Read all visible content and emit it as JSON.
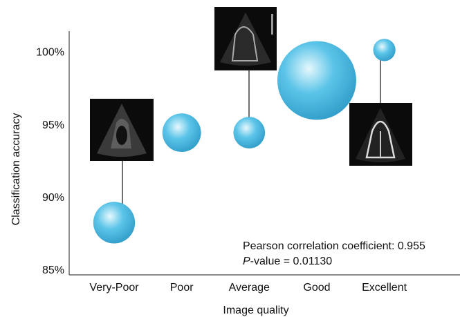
{
  "chart_data": {
    "type": "bubble",
    "xlabel": "Image quality",
    "ylabel": "Classification accuracy",
    "categories": [
      "Very-Poor",
      "Poor",
      "Average",
      "Good",
      "Excellent"
    ],
    "values": [
      88.3,
      94.5,
      94.5,
      98.1,
      100.2
    ],
    "sizes": [
      0.28,
      0.24,
      0.16,
      1.0,
      0.08
    ],
    "color": "#5bc4e8",
    "ylim": [
      84.7,
      101.5
    ],
    "yticks": [
      {
        "value": 85,
        "label": "85%"
      },
      {
        "value": 90,
        "label": "90%"
      },
      {
        "value": 95,
        "label": "95%"
      },
      {
        "value": 100,
        "label": "100%"
      }
    ],
    "grid": false,
    "annotations": [
      {
        "text": "Pearson correlation coefficient: 0.955"
      },
      {
        "italic": "P",
        "text": "-value = 0.01130"
      }
    ]
  }
}
